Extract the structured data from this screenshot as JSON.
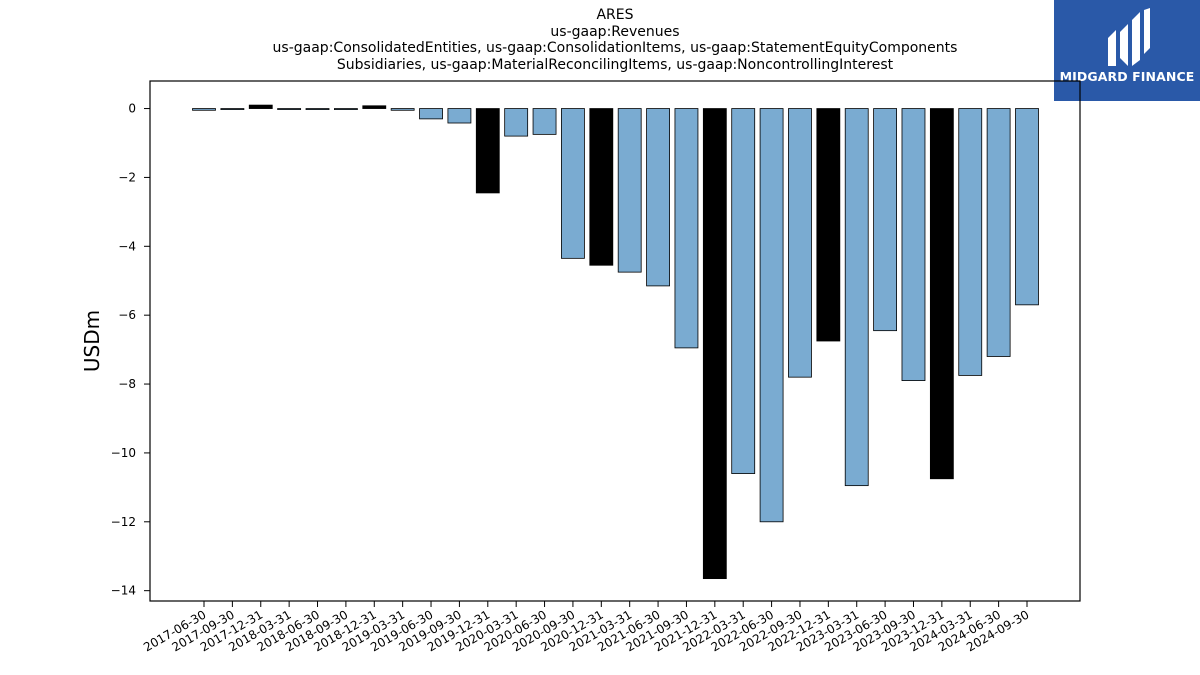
{
  "chart_data": {
    "type": "bar",
    "title": "ARES",
    "subtitle_lines": [
      "us-gaap:Revenues",
      "us-gaap:ConsolidatedEntities, us-gaap:ConsolidationItems, us-gaap:StatementEquityComponents",
      "Subsidiaries, us-gaap:MaterialReconcilingItems, us-gaap:NoncontrollingInterest"
    ],
    "xlabel": "",
    "ylabel": "USDm",
    "ylim": [
      -14.3,
      0.8
    ],
    "yticks": [
      0,
      -2,
      -4,
      -6,
      -8,
      -10,
      -12,
      -14
    ],
    "ytick_labels": [
      "0",
      "−2",
      "−4",
      "−6",
      "−8",
      "−10",
      "−12",
      "−14"
    ],
    "categories": [
      "2017-06-30",
      "2017-09-30",
      "2017-12-31",
      "2018-03-31",
      "2018-06-30",
      "2018-09-30",
      "2018-12-31",
      "2019-03-31",
      "2019-06-30",
      "2019-09-30",
      "2019-12-31",
      "2020-03-31",
      "2020-06-30",
      "2020-09-30",
      "2020-12-31",
      "2021-03-31",
      "2021-06-30",
      "2021-09-30",
      "2021-12-31",
      "2022-03-31",
      "2022-06-30",
      "2022-09-30",
      "2022-12-31",
      "2023-03-31",
      "2023-06-30",
      "2023-09-30",
      "2023-12-31",
      "2024-03-31",
      "2024-06-30",
      "2024-09-30"
    ],
    "values": [
      -0.05,
      -0.03,
      0.1,
      -0.01,
      -0.03,
      -0.03,
      0.08,
      -0.05,
      -0.3,
      -0.42,
      -2.45,
      -0.8,
      -0.75,
      -4.35,
      -4.55,
      -4.75,
      -5.15,
      -6.95,
      -13.65,
      -10.6,
      -12.0,
      -7.8,
      -6.75,
      -10.95,
      -6.45,
      -7.9,
      -10.75,
      -7.75,
      -7.2,
      -5.7
    ],
    "bar_colors": [
      "#7aabd1",
      "#7aabd1",
      "#000000",
      "#7aabd1",
      "#7aabd1",
      "#7aabd1",
      "#000000",
      "#7aabd1",
      "#7aabd1",
      "#7aabd1",
      "#000000",
      "#7aabd1",
      "#7aabd1",
      "#7aabd1",
      "#000000",
      "#7aabd1",
      "#7aabd1",
      "#7aabd1",
      "#000000",
      "#7aabd1",
      "#7aabd1",
      "#7aabd1",
      "#000000",
      "#7aabd1",
      "#7aabd1",
      "#7aabd1",
      "#000000",
      "#7aabd1",
      "#7aabd1",
      "#7aabd1"
    ],
    "grid": false,
    "legend": "none"
  },
  "logo": {
    "text": "MIDGARD FINANCE",
    "icon": "midgard-logo-icon",
    "background": "#2a59a8"
  }
}
